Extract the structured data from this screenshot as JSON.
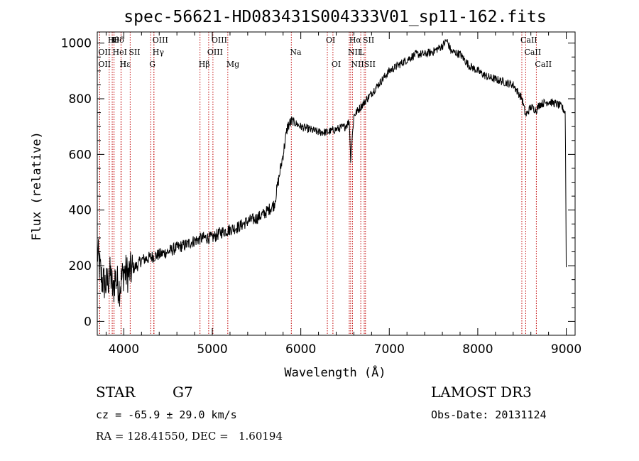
{
  "chart_data": {
    "type": "line",
    "title": "spec-56621-HD083431S004333V01_sp11-162.fits",
    "xlabel": "Wavelength (Å)",
    "ylabel": "Flux (relative)",
    "xlim": [
      3700,
      9100
    ],
    "ylim": [
      -50,
      1040
    ],
    "xticks": [
      4000,
      5000,
      6000,
      7000,
      8000,
      9000
    ],
    "yticks": [
      0,
      200,
      400,
      600,
      800,
      1000
    ],
    "grid": false,
    "series": [
      {
        "name": "",
        "x": [
          3700,
          3750,
          3800,
          3850,
          3880,
          3900,
          3950,
          4000,
          4050,
          4100,
          4150,
          4200,
          4300,
          4400,
          4500,
          4600,
          4700,
          4800,
          4900,
          5000,
          5100,
          5200,
          5300,
          5400,
          5500,
          5600,
          5700,
          5800,
          5850,
          5900,
          6000,
          6100,
          6200,
          6300,
          6400,
          6500,
          6550,
          6563,
          6600,
          6700,
          6800,
          6900,
          7000,
          7100,
          7200,
          7300,
          7400,
          7500,
          7600,
          7650,
          7700,
          7800,
          7900,
          8000,
          8100,
          8200,
          8300,
          8400,
          8500,
          8542,
          8600,
          8662,
          8700,
          8800,
          8900,
          8950,
          8990,
          9000
        ],
        "y": [
          250,
          150,
          130,
          170,
          100,
          160,
          120,
          180,
          170,
          190,
          200,
          220,
          230,
          240,
          250,
          265,
          275,
          290,
          300,
          300,
          320,
          330,
          340,
          360,
          370,
          390,
          420,
          600,
          700,
          720,
          700,
          690,
          680,
          680,
          690,
          700,
          720,
          580,
          740,
          780,
          820,
          860,
          900,
          920,
          940,
          960,
          960,
          970,
          990,
          1010,
          970,
          960,
          920,
          900,
          880,
          870,
          860,
          850,
          800,
          740,
          770,
          760,
          780,
          790,
          780,
          770,
          750,
          200
        ]
      }
    ],
    "line_markers": [
      {
        "wave": 3835,
        "label": "Hθ",
        "row": 0
      },
      {
        "wave": 3869,
        "label": "K",
        "row": 0
      },
      {
        "wave": 3889,
        "label": "Hδ",
        "row": 0
      },
      {
        "wave": 4340,
        "label": "OIII",
        "row": 0
      },
      {
        "wave": 5007,
        "label": "OIII",
        "row": 0
      },
      {
        "wave": 6300,
        "label": "OI",
        "row": 0
      },
      {
        "wave": 6563,
        "label": "Hα",
        "row": 0
      },
      {
        "wave": 6717,
        "label": "SII",
        "row": 0
      },
      {
        "wave": 8498,
        "label": "CaII",
        "row": 0
      },
      {
        "wave": 3727,
        "label": "OII",
        "row": 1
      },
      {
        "wave": 3889,
        "label": "HeI",
        "row": 1
      },
      {
        "wave": 4072,
        "label": "SII",
        "row": 1
      },
      {
        "wave": 4340,
        "label": "Hγ",
        "row": 1
      },
      {
        "wave": 4959,
        "label": "OIII",
        "row": 1
      },
      {
        "wave": 5893,
        "label": "Na",
        "row": 1
      },
      {
        "wave": 6548,
        "label": "NII",
        "row": 1
      },
      {
        "wave": 6678,
        "label": "L",
        "row": 1
      },
      {
        "wave": 8542,
        "label": "CaII",
        "row": 1
      },
      {
        "wave": 3727,
        "label": "OII",
        "row": 2
      },
      {
        "wave": 3970,
        "label": "Hε",
        "row": 2
      },
      {
        "wave": 3968,
        "label": "H",
        "row": 2
      },
      {
        "wave": 4304,
        "label": "G",
        "row": 2
      },
      {
        "wave": 4861,
        "label": "Hβ",
        "row": 2
      },
      {
        "wave": 5175,
        "label": "Mg",
        "row": 2
      },
      {
        "wave": 6363,
        "label": "OI",
        "row": 2
      },
      {
        "wave": 6584,
        "label": "NII",
        "row": 2
      },
      {
        "wave": 6731,
        "label": "SII",
        "row": 2
      },
      {
        "wave": 8662,
        "label": "CaII",
        "row": 2
      }
    ],
    "marker_color": "#c00000",
    "line_color": "#000000"
  },
  "info": {
    "class_label": "STAR",
    "subclass": "G7",
    "survey": "LAMOST DR3",
    "cz": "cz = -65.9 ± 29.0 km/s",
    "obs_date": "Obs-Date: 20131124",
    "coords": "RA = 128.41550, DEC =   1.60194"
  }
}
